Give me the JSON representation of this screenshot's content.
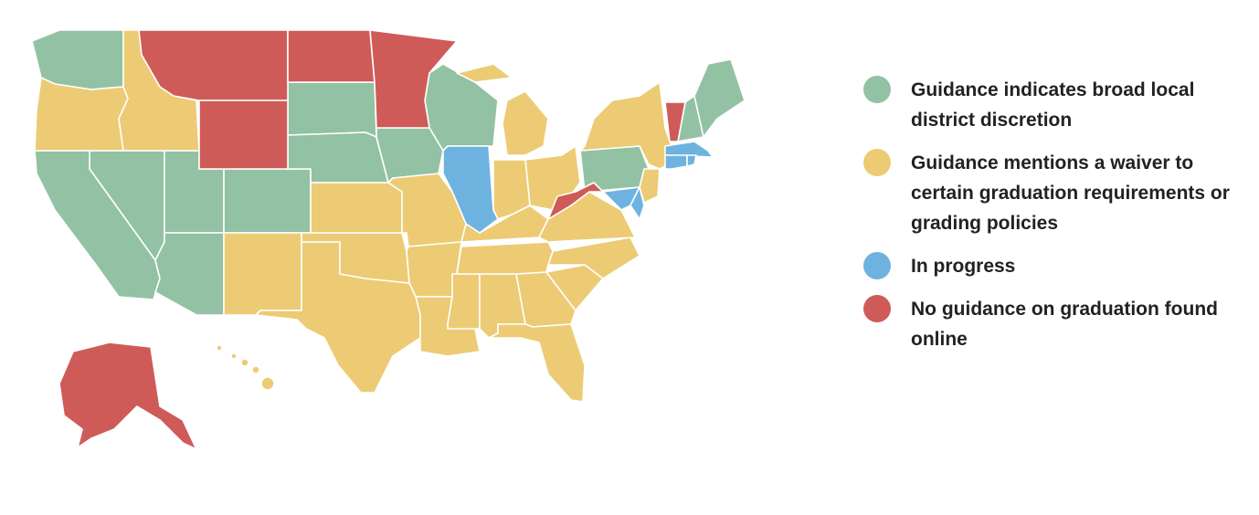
{
  "legend": [
    {
      "key": "broad",
      "label": "Guidance indicates broad local district discretion",
      "color": "#93c1a4"
    },
    {
      "key": "waiver",
      "label": "Guidance mentions a waiver to certain graduation requirements or grading policies",
      "color": "#eccb74"
    },
    {
      "key": "progress",
      "label": "In progress",
      "color": "#6eb3e0"
    },
    {
      "key": "none",
      "label": "No guidance on graduation found online",
      "color": "#cf5b58"
    }
  ],
  "chart_data": {
    "type": "choropleth",
    "states": {
      "WA": "broad",
      "NV": "broad",
      "CA": "broad",
      "UT": "broad",
      "AZ": "broad",
      "CO": "broad",
      "SD": "broad",
      "NE": "broad",
      "IA": "broad",
      "WI": "broad",
      "PA": "broad",
      "NH": "broad",
      "ME": "broad",
      "OR": "waiver",
      "ID": "waiver",
      "NM": "waiver",
      "TX": "waiver",
      "OK": "waiver",
      "KS": "waiver",
      "MO": "waiver",
      "AR": "waiver",
      "LA": "waiver",
      "MS": "waiver",
      "AL": "waiver",
      "GA": "waiver",
      "FL": "waiver",
      "SC": "waiver",
      "NC": "waiver",
      "TN": "waiver",
      "KY": "waiver",
      "VA": "waiver",
      "OH": "waiver",
      "IN": "waiver",
      "MI": "waiver",
      "NY": "waiver",
      "NJ": "waiver",
      "HI": "waiver",
      "IL": "progress",
      "MD": "progress",
      "DE": "progress",
      "MA": "progress",
      "CT": "progress",
      "RI": "progress",
      "MT": "none",
      "WY": "none",
      "ND": "none",
      "MN": "none",
      "VT": "none",
      "WV": "none",
      "AK": "none"
    }
  }
}
